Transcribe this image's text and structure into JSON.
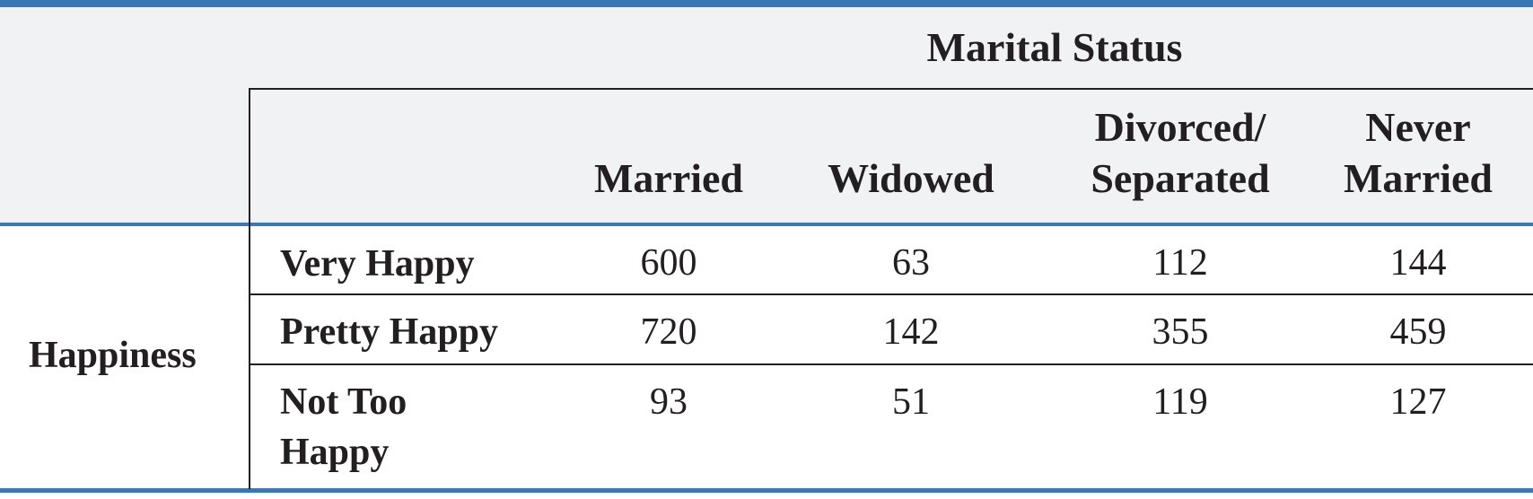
{
  "table": {
    "column_group": "Marital Status",
    "row_group": "Happiness",
    "columns": [
      {
        "line1": "",
        "line2": "Married"
      },
      {
        "line1": "",
        "line2": "Widowed"
      },
      {
        "line1": "Divorced/",
        "line2": "Separated"
      },
      {
        "line1": "Never",
        "line2": "Married"
      }
    ],
    "rows": [
      {
        "label_line1": "Very Happy",
        "label_line2": "",
        "values": [
          "600",
          "63",
          "112",
          "144"
        ]
      },
      {
        "label_line1": "Pretty Happy",
        "label_line2": "",
        "values": [
          "720",
          "142",
          "355",
          "459"
        ]
      },
      {
        "label_line1": "Not Too",
        "label_line2": "Happy",
        "values": [
          "93",
          "51",
          "119",
          "127"
        ]
      }
    ]
  },
  "colors": {
    "accent": "#3a78b4",
    "header_bg": "#f1f2f4",
    "text": "#231f20"
  }
}
